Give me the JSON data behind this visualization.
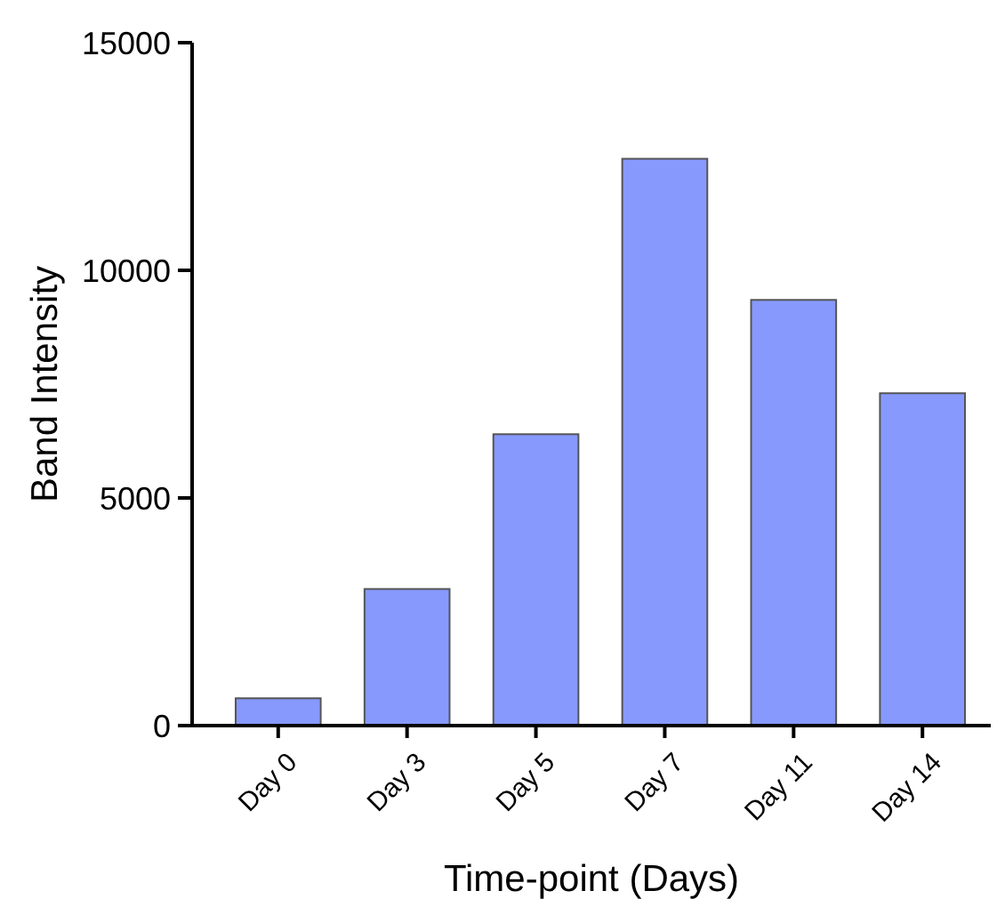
{
  "chart_data": {
    "type": "bar",
    "xlabel": "Time-point (Days)",
    "ylabel": "Band Intensity",
    "categories": [
      "Day 0",
      "Day 3",
      "Day 5",
      "Day 7",
      "Day 11",
      "Day 14"
    ],
    "values": [
      600,
      3000,
      6400,
      12450,
      9350,
      7300
    ],
    "color": "#8799fc",
    "ylim": [
      0,
      15000
    ],
    "yticks": [
      0,
      5000,
      10000,
      15000
    ],
    "grid": false
  }
}
